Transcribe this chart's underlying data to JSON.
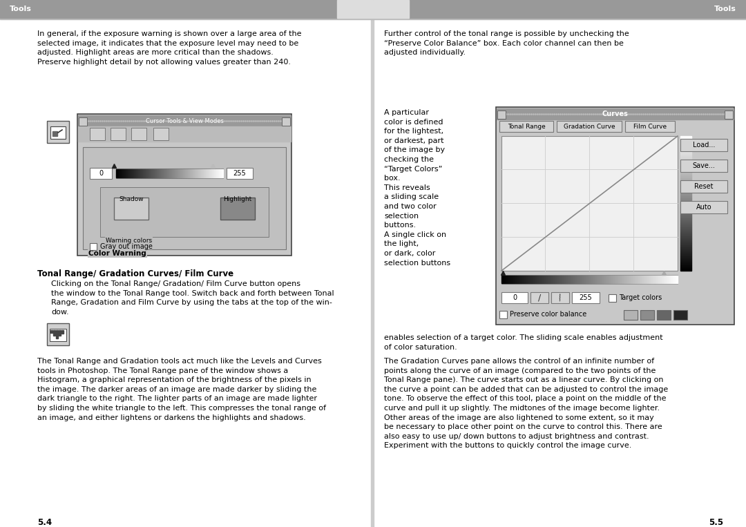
{
  "body_bg": "#ffffff",
  "header_bg": "#aaaaaa",
  "header_text": "Tools",
  "page_left_num": "5.4",
  "page_right_num": "5.5",
  "left_para1": "In general, if the exposure warning is shown over a large area of the\nselected image, it indicates that the exposure level may need to be\nadjusted. Highlight areas are more critical than the shadows.\nPreserve highlight detail by not allowing values greater than 240.",
  "left_section_title": "Tonal Range/ Gradation Curves/ Film Curve",
  "left_section_body1": "Clicking on the Tonal Range/ Gradation/ Film Curve button opens\nthe window to the Tonal Range tool. Switch back and forth between Tonal\nRange, Gradation and Film Curve by using the tabs at the top of the win-\ndow.",
  "left_para2": "The Tonal Range and Gradation tools act much like the Levels and Curves\ntools in Photoshop. The Tonal Range pane of the window shows a\nHistogram, a graphical representation of the brightness of the pixels in\nthe image. The darker areas of an image are made darker by sliding the\ndark triangle to the right. The lighter parts of an image are made lighter\nby sliding the white triangle to the left. This compresses the tonal range of\nan image, and either lightens or darkens the highlights and shadows.",
  "right_para1": "Further control of the tonal range is possible by unchecking the\n“Preserve Color Balance” box. Each color channel can then be\nadjusted individually.",
  "right_side_text": "A particular\ncolor is defined\nfor the lightest,\nor darkest, part\nof the image by\nchecking the\n“Target Colors”\nbox.\nThis reveals\na sliding scale\nand two color\nselection\nbuttons.\nA single click on\nthe light,\nor dark, color\nselection buttons",
  "right_para3": "enables selection of a target color. The sliding scale enables adjustment\nof color saturation.",
  "right_para4": "The Gradation Curves pane allows the control of an infinite number of\npoints along the curve of an image (compared to the two points of the\nTonal Range pane). The curve starts out as a linear curve. By clicking on\nthe curve a point can be added that can be adjusted to control the image\ntone. To observe the effect of this tool, place a point on the middle of the\ncurve and pull it up slightly. The midtones of the image become lighter.\nOther areas of the image are also lightened to some extent, so it may\nbe necessary to place other point on the curve to control this. There are\nalso easy to use up/ down buttons to adjust brightness and contrast.\nExperiment with the buttons to quickly control the image curve.",
  "win1_title": "Cursor Tools & View Modes",
  "win2_title": "Curves",
  "tab_labels": [
    "Tonal Range",
    "Gradation Curve",
    "Film Curve"
  ],
  "btn_labels": [
    "Load...",
    "Save...",
    "Reset",
    "Auto"
  ]
}
